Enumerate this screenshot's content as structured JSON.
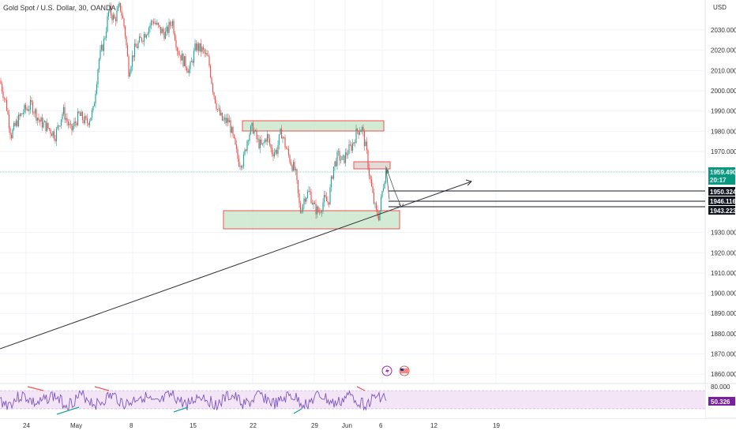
{
  "header": {
    "symbol_title": "Gold Spot / U.S. Dollar, 30, OANDA"
  },
  "price_axis": {
    "currency": "USD",
    "ticks": [
      "2030.000",
      "2020.000",
      "2010.000",
      "2000.000",
      "1990.000",
      "1980.000",
      "1970.000",
      "1930.000",
      "1920.000",
      "1910.000",
      "1900.000",
      "1890.000",
      "1880.000",
      "1870.000",
      "1860.000"
    ],
    "current_price": "1959.490",
    "countdown": "20:17",
    "levels": [
      "1950.324",
      "1946.116",
      "1943.223"
    ]
  },
  "rsi_axis": {
    "top_tick": "80.000",
    "value": "50.326"
  },
  "time_axis": {
    "ticks": [
      "24",
      "May",
      "8",
      "15",
      "22",
      "29",
      "Jun",
      "6",
      "12",
      "19"
    ]
  },
  "colors": {
    "up": "#26a69a",
    "down": "#ef5350",
    "zone_fill": "#c8e6c9",
    "zone_border": "#ef5350",
    "rsi_line": "#7e57c2",
    "rsi_band": "#f3e5f5",
    "price_label": "#089981",
    "current_line": "#26a69a",
    "rsi_badge": "#7b1fa2",
    "event_badge": "#9c27b0"
  },
  "chart_data": {
    "type": "candlestick",
    "ylabel": "USD",
    "ylim": [
      1855,
      2045
    ],
    "price_path": [
      [
        0,
        2005
      ],
      [
        8,
        1993
      ],
      [
        14,
        1978
      ],
      [
        22,
        1985
      ],
      [
        30,
        1990
      ],
      [
        40,
        1993
      ],
      [
        50,
        1985
      ],
      [
        60,
        1982
      ],
      [
        70,
        1978
      ],
      [
        80,
        1990
      ],
      [
        90,
        1980
      ],
      [
        100,
        1988
      ],
      [
        110,
        1984
      ],
      [
        118,
        1990
      ],
      [
        125,
        2015
      ],
      [
        132,
        2025
      ],
      [
        138,
        2040
      ],
      [
        145,
        2035
      ],
      [
        152,
        2042
      ],
      [
        158,
        2030
      ],
      [
        163,
        2010
      ],
      [
        170,
        2020
      ],
      [
        178,
        2025
      ],
      [
        186,
        2030
      ],
      [
        194,
        2035
      ],
      [
        202,
        2030
      ],
      [
        210,
        2028
      ],
      [
        218,
        2035
      ],
      [
        225,
        2020
      ],
      [
        232,
        2015
      ],
      [
        240,
        2010
      ],
      [
        248,
        2022
      ],
      [
        256,
        2020
      ],
      [
        264,
        2015
      ],
      [
        270,
        2000
      ],
      [
        276,
        1990
      ],
      [
        282,
        1985
      ],
      [
        290,
        1985
      ],
      [
        296,
        1975
      ],
      [
        302,
        1965
      ],
      [
        308,
        1965
      ],
      [
        314,
        1978
      ],
      [
        320,
        1982
      ],
      [
        326,
        1975
      ],
      [
        332,
        1972
      ],
      [
        338,
        1978
      ],
      [
        344,
        1970
      ],
      [
        350,
        1970
      ],
      [
        356,
        1980
      ],
      [
        362,
        1972
      ],
      [
        368,
        1965
      ],
      [
        374,
        1960
      ],
      [
        380,
        1940
      ],
      [
        386,
        1948
      ],
      [
        392,
        1950
      ],
      [
        398,
        1942
      ],
      [
        404,
        1940
      ],
      [
        410,
        1946
      ],
      [
        416,
        1945
      ],
      [
        422,
        1962
      ],
      [
        428,
        1968
      ],
      [
        434,
        1965
      ],
      [
        440,
        1970
      ],
      [
        446,
        1973
      ],
      [
        452,
        1980
      ],
      [
        458,
        1982
      ],
      [
        464,
        1970
      ],
      [
        468,
        1958
      ],
      [
        472,
        1948
      ],
      [
        476,
        1940
      ],
      [
        480,
        1938
      ],
      [
        484,
        1950
      ],
      [
        488,
        1960
      ],
      [
        492,
        1963
      ]
    ],
    "key_lows": [
      1935.0,
      1939.0
    ],
    "supply_zone": [
      1981.5,
      1986.5
    ],
    "small_zone": [
      1962.0,
      1965.0
    ],
    "demand_zone": [
      1932.0,
      1941.0
    ],
    "projection_levels": [
      1950.324,
      1946.116,
      1943.223
    ]
  }
}
